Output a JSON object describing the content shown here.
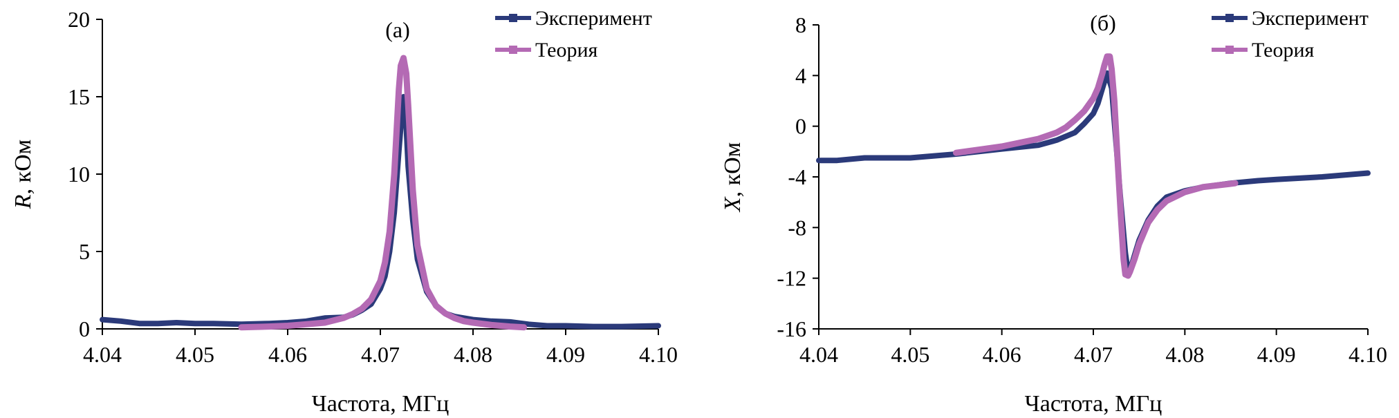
{
  "colors": {
    "experiment": "#2b3a7a",
    "theory": "#b46ab4",
    "axis": "#000000"
  },
  "chart_data": [
    {
      "id": "a",
      "type": "line",
      "panel_label": "(a)",
      "xlabel": "Частота, МГц",
      "ylabel_var": "R",
      "ylabel_rest": ", кОм",
      "xlim": [
        4.04,
        4.1
      ],
      "ylim": [
        0,
        20
      ],
      "xticks": [
        4.04,
        4.05,
        4.06,
        4.07,
        4.08,
        4.09,
        4.1
      ],
      "xtick_labels": [
        "4.04",
        "4.05",
        "4.06",
        "4.07",
        "4.08",
        "4.09",
        "4.10"
      ],
      "yticks": [
        0,
        5,
        10,
        15,
        20
      ],
      "ytick_labels": [
        "0",
        "5",
        "10",
        "15",
        "20"
      ],
      "grid": false,
      "legend": "top-right",
      "series": [
        {
          "name": "Эксперимент",
          "x": [
            4.04,
            4.042,
            4.044,
            4.046,
            4.048,
            4.05,
            4.052,
            4.055,
            4.058,
            4.06,
            4.062,
            4.064,
            4.066,
            4.067,
            4.068,
            4.069,
            4.07,
            4.0705,
            4.071,
            4.0715,
            4.072,
            4.0722,
            4.0725,
            4.0728,
            4.073,
            4.0735,
            4.074,
            4.075,
            4.076,
            4.077,
            4.078,
            4.079,
            4.08,
            4.082,
            4.084,
            4.086,
            4.088,
            4.09,
            4.093,
            4.096,
            4.1
          ],
          "y": [
            0.6,
            0.5,
            0.35,
            0.35,
            0.4,
            0.35,
            0.35,
            0.3,
            0.35,
            0.4,
            0.5,
            0.7,
            0.75,
            0.9,
            1.2,
            1.6,
            2.6,
            3.4,
            5.0,
            7.5,
            11.5,
            13.0,
            15.0,
            13.0,
            10.5,
            7.0,
            4.5,
            2.4,
            1.5,
            1.0,
            0.8,
            0.7,
            0.6,
            0.5,
            0.45,
            0.3,
            0.2,
            0.2,
            0.15,
            0.15,
            0.2
          ]
        },
        {
          "name": "Теория",
          "x": [
            4.055,
            4.058,
            4.06,
            4.062,
            4.064,
            4.066,
            4.067,
            4.068,
            4.069,
            4.07,
            4.0705,
            4.071,
            4.0715,
            4.072,
            4.0722,
            4.0725,
            4.0728,
            4.073,
            4.0735,
            4.074,
            4.075,
            4.076,
            4.077,
            4.078,
            4.079,
            4.08,
            4.082,
            4.084,
            4.0855
          ],
          "y": [
            0.1,
            0.15,
            0.2,
            0.3,
            0.4,
            0.7,
            0.95,
            1.3,
            1.9,
            3.1,
            4.3,
            6.3,
            10.0,
            15.5,
            17.0,
            17.5,
            16.5,
            14.5,
            9.0,
            5.4,
            2.6,
            1.5,
            1.0,
            0.7,
            0.5,
            0.4,
            0.25,
            0.15,
            0.1
          ]
        }
      ]
    },
    {
      "id": "b",
      "type": "line",
      "panel_label": "(б)",
      "xlabel": "Частота, МГц",
      "ylabel_var": "X",
      "ylabel_rest": ", кОм",
      "xlim": [
        4.04,
        4.1
      ],
      "ylim": [
        -16,
        8
      ],
      "xticks": [
        4.04,
        4.05,
        4.06,
        4.07,
        4.08,
        4.09,
        4.1
      ],
      "xtick_labels": [
        "4.04",
        "4.05",
        "4.06",
        "4.07",
        "4.08",
        "4.09",
        "4.10"
      ],
      "yticks": [
        8,
        4,
        0,
        -4,
        -8,
        -12,
        -16
      ],
      "ytick_labels": [
        "8",
        "4",
        "0",
        "-4",
        "-8",
        "-12",
        "-16"
      ],
      "grid": false,
      "legend": "top-right",
      "series": [
        {
          "name": "Эксперимент",
          "x": [
            4.04,
            4.042,
            4.045,
            4.05,
            4.055,
            4.06,
            4.064,
            4.066,
            4.068,
            4.069,
            4.07,
            4.0705,
            4.071,
            4.0715,
            4.072,
            4.0725,
            4.073,
            4.0735,
            4.0738,
            4.074,
            4.0745,
            4.075,
            4.076,
            4.077,
            4.078,
            4.08,
            4.082,
            4.085,
            4.088,
            4.09,
            4.095,
            4.1
          ],
          "y": [
            -2.7,
            -2.7,
            -2.5,
            -2.5,
            -2.2,
            -1.8,
            -1.5,
            -1.1,
            -0.5,
            0.2,
            1.0,
            1.8,
            3.0,
            4.2,
            3.0,
            -1.5,
            -6.0,
            -10.0,
            -11.5,
            -11.4,
            -10.2,
            -9.0,
            -7.4,
            -6.3,
            -5.6,
            -5.1,
            -4.8,
            -4.5,
            -4.3,
            -4.2,
            -4.0,
            -3.7
          ]
        },
        {
          "name": "Теория",
          "x": [
            4.055,
            4.058,
            4.06,
            4.062,
            4.064,
            4.066,
            4.067,
            4.068,
            4.069,
            4.07,
            4.0705,
            4.071,
            4.0712,
            4.0715,
            4.0718,
            4.072,
            4.0723,
            4.0726,
            4.073,
            4.0733,
            4.0735,
            4.0738,
            4.074,
            4.0745,
            4.075,
            4.076,
            4.077,
            4.078,
            4.08,
            4.082,
            4.0855
          ],
          "y": [
            -2.1,
            -1.8,
            -1.6,
            -1.3,
            -1.0,
            -0.5,
            -0.1,
            0.5,
            1.2,
            2.2,
            3.0,
            4.2,
            4.8,
            5.5,
            5.5,
            4.5,
            2.0,
            -2.0,
            -7.0,
            -10.5,
            -11.7,
            -11.8,
            -11.5,
            -10.5,
            -9.3,
            -7.6,
            -6.6,
            -5.9,
            -5.2,
            -4.8,
            -4.5
          ]
        }
      ]
    }
  ]
}
